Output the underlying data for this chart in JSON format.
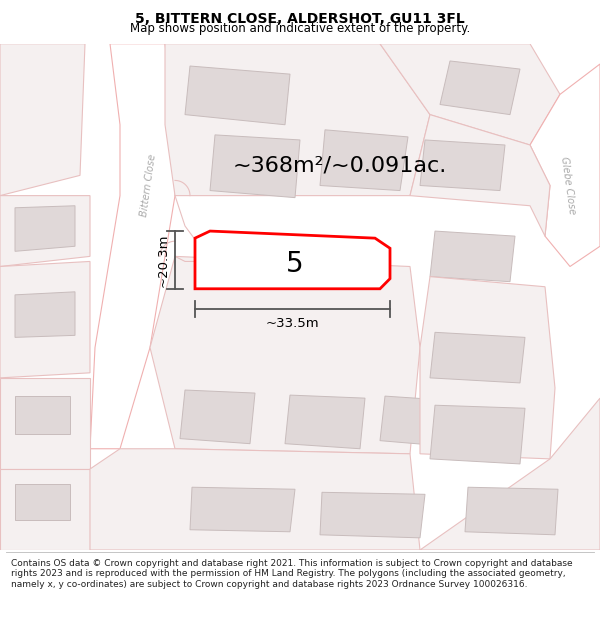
{
  "title": "5, BITTERN CLOSE, ALDERSHOT, GU11 3FL",
  "subtitle": "Map shows position and indicative extent of the property.",
  "area_text": "~368m²/~0.091ac.",
  "dim_width": "~33.5m",
  "dim_height": "~20.3m",
  "plot_number": "5",
  "footer": "Contains OS data © Crown copyright and database right 2021. This information is subject to Crown copyright and database rights 2023 and is reproduced with the permission of HM Land Registry. The polygons (including the associated geometry, namely x, y co-ordinates) are subject to Crown copyright and database rights 2023 Ordnance Survey 100026316.",
  "bg_color": "#ffffff",
  "road_outline": "#f0b0b0",
  "road_fill": "#ffffff",
  "parcel_outline": "#e8c0c0",
  "parcel_fill": "#f5f0f0",
  "building_fill": "#e0d8d8",
  "building_edge": "#c8bcbc",
  "highlight_color": "#ff0000",
  "highlight_fill": "#ffffff",
  "text_color": "#000000",
  "dim_color": "#555555",
  "street_label_color": "#aaaaaa",
  "title_fontsize": 10,
  "subtitle_fontsize": 8.5,
  "footer_fontsize": 6.5,
  "area_fontsize": 16,
  "plot_num_fontsize": 20,
  "dim_fontsize": 9.5
}
